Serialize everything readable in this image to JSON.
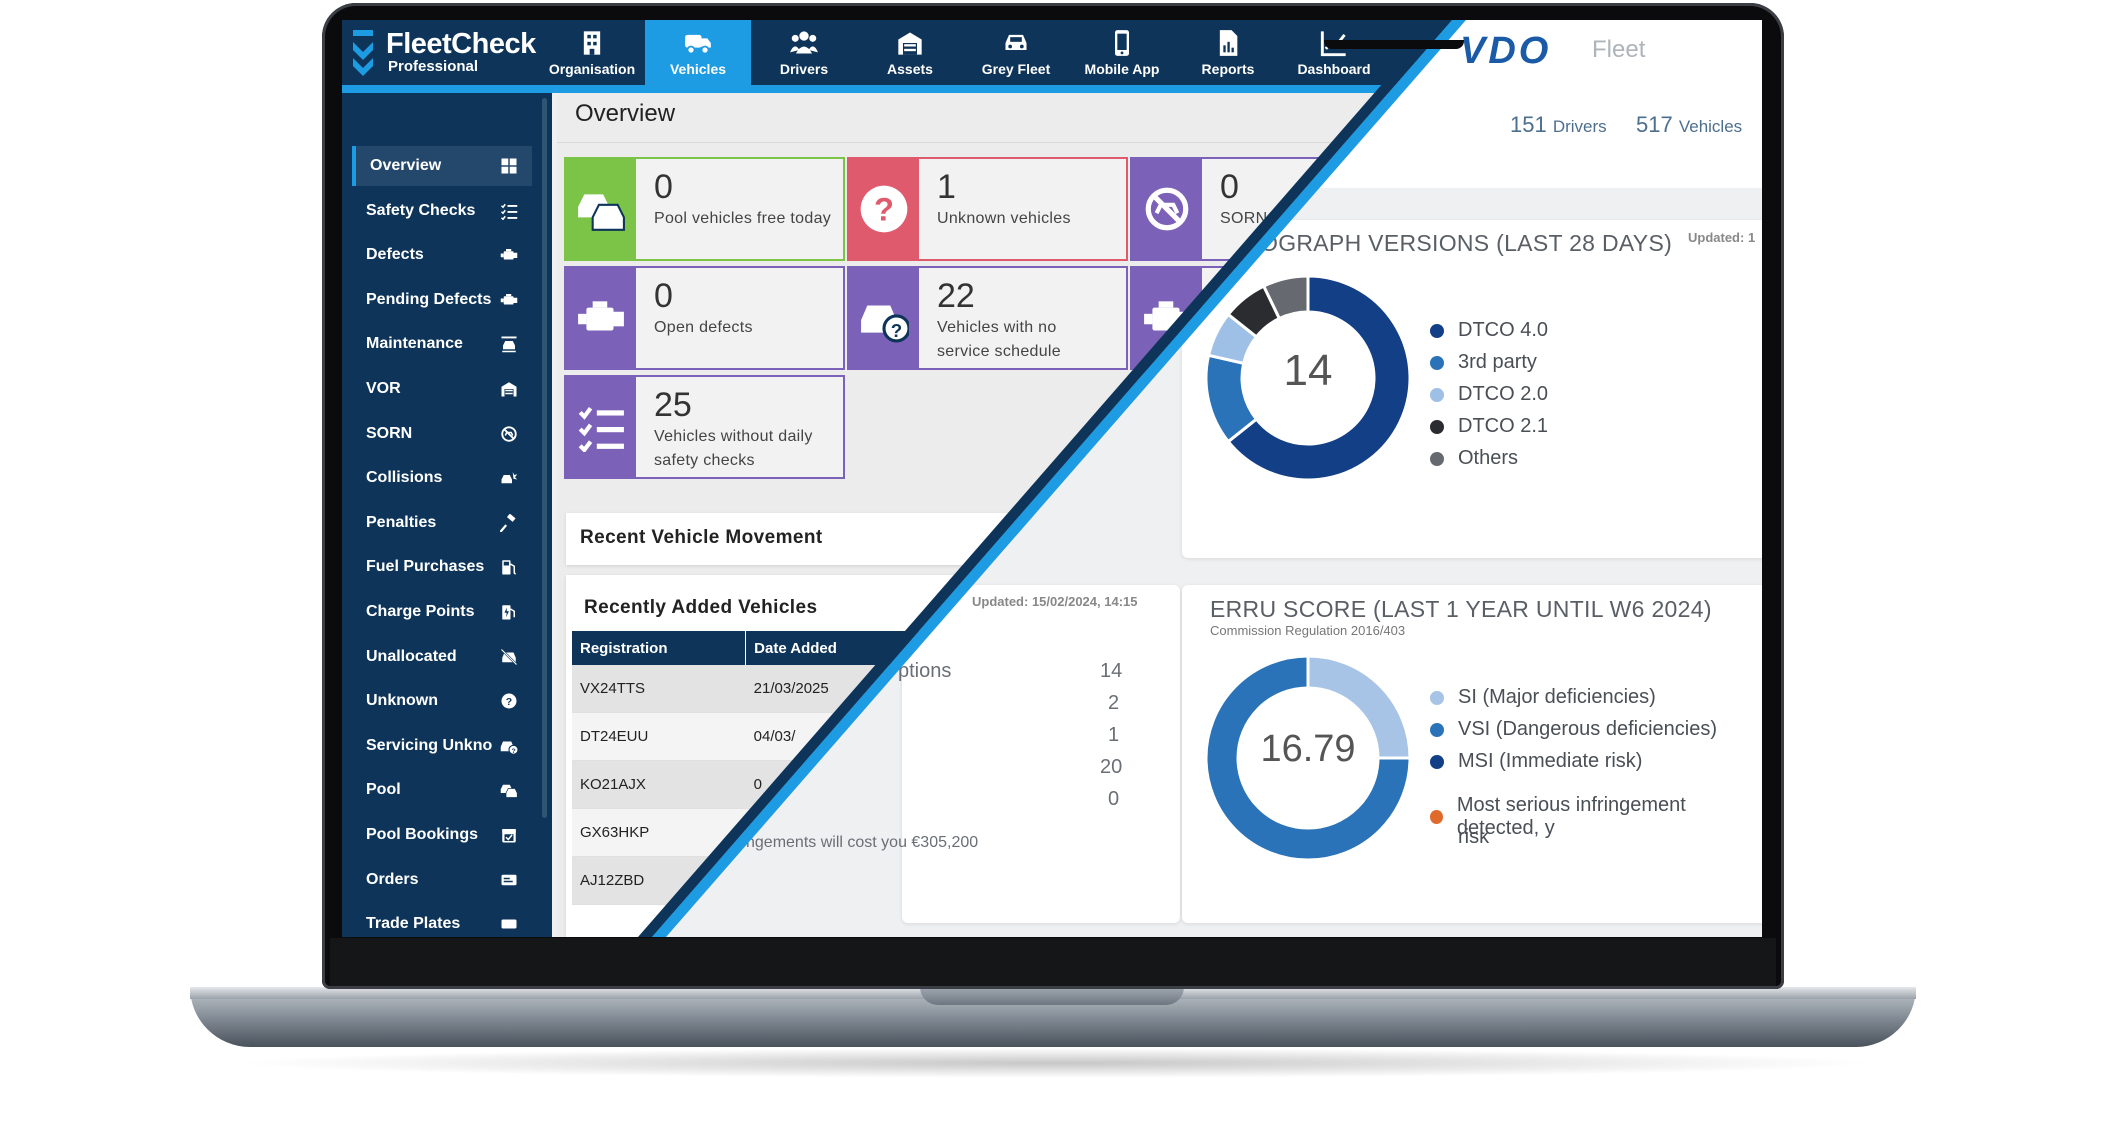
{
  "fleetcheck": {
    "brand": {
      "name": "FleetCheck",
      "sub": "Professional"
    },
    "nav": [
      {
        "label": "Organisation",
        "icon": "building-icon"
      },
      {
        "label": "Vehicles",
        "icon": "van-icon",
        "active": true
      },
      {
        "label": "Drivers",
        "icon": "people-icon"
      },
      {
        "label": "Assets",
        "icon": "garage-icon"
      },
      {
        "label": "Grey Fleet",
        "icon": "car-icon"
      },
      {
        "label": "Mobile App",
        "icon": "phone-icon"
      },
      {
        "label": "Reports",
        "icon": "report-icon"
      },
      {
        "label": "Dashboard",
        "icon": "chart-icon"
      }
    ],
    "sidebar": [
      {
        "label": "Overview",
        "icon": "grid-icon",
        "active": true
      },
      {
        "label": "Safety Checks",
        "icon": "checklist-icon"
      },
      {
        "label": "Defects",
        "icon": "engine-icon"
      },
      {
        "label": "Pending Defects",
        "icon": "engine-icon"
      },
      {
        "label": "Maintenance",
        "icon": "car-lift-icon"
      },
      {
        "label": "VOR",
        "icon": "garage-icon"
      },
      {
        "label": "SORN",
        "icon": "no-drive-icon"
      },
      {
        "label": "Collisions",
        "icon": "collision-icon"
      },
      {
        "label": "Penalties",
        "icon": "gavel-icon"
      },
      {
        "label": "Fuel Purchases",
        "icon": "fuel-icon"
      },
      {
        "label": "Charge Points",
        "icon": "charge-icon"
      },
      {
        "label": "Unallocated",
        "icon": "car-off-icon"
      },
      {
        "label": "Unknown",
        "icon": "question-icon"
      },
      {
        "label": "Servicing Unkno",
        "icon": "car-question-icon"
      },
      {
        "label": "Pool",
        "icon": "pool-cars-icon"
      },
      {
        "label": "Pool Bookings",
        "icon": "calendar-icon"
      },
      {
        "label": "Orders",
        "icon": "order-icon"
      },
      {
        "label": "Trade Plates",
        "icon": "plate-icon"
      }
    ],
    "page_title": "Overview",
    "tiles": [
      {
        "value": "0",
        "label_lines": [
          "Pool vehicles free today"
        ],
        "color": "#7cc447",
        "icon": "pool-cars-icon"
      },
      {
        "value": "1",
        "label_lines": [
          "Unknown vehicles"
        ],
        "color": "#e05a6e",
        "icon": "question-icon"
      },
      {
        "value": "0",
        "label_lines": [
          "SORN"
        ],
        "color": "#7b62b8",
        "icon": "no-drive-icon"
      },
      {
        "value": "0",
        "label_lines": [
          "Open defects"
        ],
        "color": "#7b62b8",
        "icon": "engine-icon"
      },
      {
        "value": "22",
        "label_lines": [
          "Vehicles with no",
          "service schedule"
        ],
        "color": "#7b62b8",
        "icon": "car-question-icon"
      },
      {
        "value": "",
        "label_lines": [],
        "color": "#7b62b8",
        "icon": "engine-icon"
      },
      {
        "value": "25",
        "label_lines": [
          "Vehicles without daily",
          "safety checks"
        ],
        "color": "#7b62b8",
        "icon": "checklist-icon"
      }
    ],
    "recent_movement": {
      "title": "Recent Vehicle Movement"
    },
    "recent_added": {
      "title": "Recently Added Vehicles",
      "columns": [
        "Registration",
        "Date Added"
      ],
      "rows": [
        [
          "VX24TTS",
          "21/03/2025"
        ],
        [
          "DT24EUU",
          "04/03/"
        ],
        [
          "KO21AJX",
          "0"
        ],
        [
          "GX63HKP",
          ""
        ],
        [
          "AJ12ZBD",
          ""
        ]
      ]
    },
    "partial_zero": "0"
  },
  "vdo": {
    "brand": "VDO",
    "product": "Fleet",
    "counts": [
      {
        "value": "151",
        "unit": "Drivers"
      },
      {
        "value": "517",
        "unit": "Vehicles"
      }
    ],
    "tachograph": {
      "title": "OGRAPH VERSIONS (LAST 28 DAYS)",
      "updated": "Updated: 1",
      "center": "14"
    },
    "erru": {
      "title": "ERRU SCORE (LAST 1 YEAR UNTIL W6 2024)",
      "subtitle": "Commission Regulation 2016/403",
      "center": "16.79",
      "note_lines": [
        "Most serious infringement detected, y",
        "risk"
      ],
      "note_color": "#e06a2c"
    },
    "infringements": {
      "updated": "Updated: 15/02/2024, 14:15",
      "label": "ptions",
      "values": [
        "14",
        "2",
        "1",
        "20",
        "0"
      ],
      "cost": "ngements will cost you €305,200"
    }
  },
  "chart_data": [
    {
      "type": "pie",
      "title": "OGRAPH VERSIONS (LAST 28 DAYS)",
      "center_label": "14",
      "categories": [
        "DTCO 4.0",
        "3rd party",
        "DTCO 2.0",
        "DTCO 2.1",
        "Others"
      ],
      "values": [
        9,
        2,
        1,
        1,
        1
      ],
      "colors": [
        "#123f86",
        "#2a73b8",
        "#9fc0e6",
        "#2a2c30",
        "#666a70"
      ]
    },
    {
      "type": "pie",
      "title": "ERRU SCORE (LAST 1 YEAR UNTIL W6 2024)",
      "center_label": "16.79",
      "categories": [
        "SI (Major deficiencies)",
        "VSI (Dangerous deficiencies)",
        "MSI (Immediate risk)"
      ],
      "values": [
        25,
        75,
        0
      ],
      "colors": [
        "#a7c3e6",
        "#2a73b8",
        "#123f86"
      ]
    }
  ]
}
